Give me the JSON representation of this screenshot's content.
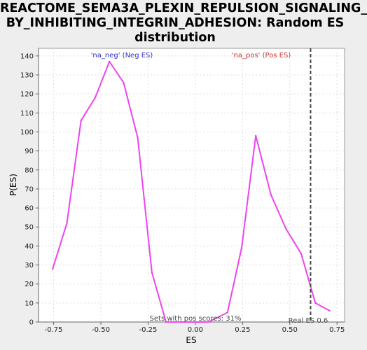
{
  "colors": {
    "background": "#eeeeee",
    "plot_background": "#ffffff",
    "series": "#ee44ee",
    "neg_label": "#3333cc",
    "pos_label": "#cc3333",
    "grid": "#dddddd",
    "real_es_line": "#444444"
  },
  "chart_data": {
    "type": "line",
    "title_lines": [
      "REACTOME_SEMA3A_PLEXIN_REPULSION_SIGNALING_",
      "BY_INHIBITING_INTEGRIN_ADHESION: Random ES",
      "distribution"
    ],
    "xlabel": "ES",
    "ylabel": "P(ES)",
    "xlim": [
      -0.83,
      0.79
    ],
    "ylim": [
      0,
      144
    ],
    "x_ticks": [
      -0.75,
      -0.5,
      -0.25,
      0.0,
      0.25,
      0.5,
      0.75
    ],
    "x_tick_labels": [
      "-0.75",
      "-0.50",
      "-0.25",
      "0.00",
      "0.25",
      "0.50",
      "0.75"
    ],
    "y_ticks": [
      0,
      10,
      20,
      30,
      40,
      50,
      60,
      70,
      80,
      90,
      100,
      110,
      120,
      130,
      140
    ],
    "y_tick_labels": [
      "0",
      "10",
      "20",
      "30",
      "40",
      "50",
      "60",
      "70",
      "80",
      "90",
      "100",
      "110",
      "120",
      "130",
      "140"
    ],
    "grid": true,
    "series": [
      {
        "name": "Random ES distribution",
        "x": [
          -0.755,
          -0.68,
          -0.605,
          -0.53,
          -0.455,
          -0.38,
          -0.305,
          -0.23,
          -0.155,
          -0.08,
          -0.005,
          0.07,
          0.17,
          0.245,
          0.32,
          0.4,
          0.48,
          0.56,
          0.635,
          0.71
        ],
        "y": [
          28,
          52,
          106,
          118,
          137,
          126,
          97,
          26,
          0,
          0,
          0,
          0,
          5,
          39,
          98,
          67,
          49,
          36,
          10,
          6
        ]
      }
    ],
    "real_es": 0.61,
    "annotations": {
      "neg_label": "'na_neg' (Neg ES)",
      "pos_label": "'na_pos' (Pos ES)",
      "pos_scores": "Sets with pos scores: 31%",
      "real_es_label": "Real ES 0.6"
    }
  }
}
